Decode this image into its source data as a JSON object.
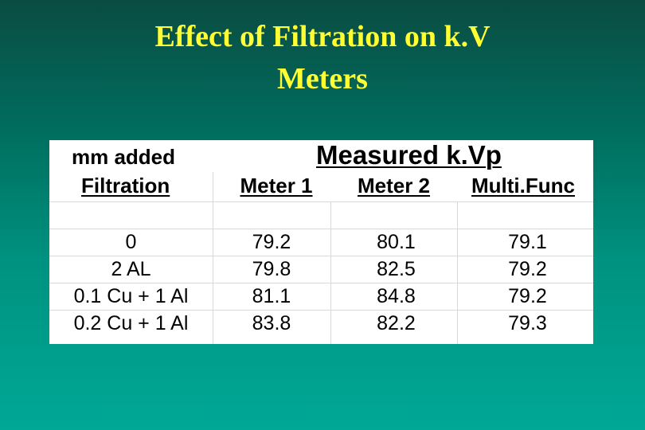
{
  "title": {
    "line1": "Effect of Filtration on k.V",
    "line2": "Meters"
  },
  "table": {
    "group_header": "Measured k.Vp",
    "filtration_header_line1": "mm added",
    "filtration_header_line2": "Filtration",
    "columns": [
      "Meter 1",
      "Meter 2",
      "Multi.Func"
    ],
    "rows": [
      {
        "filtration": "0",
        "values": [
          "79.2",
          "80.1",
          "79.1"
        ]
      },
      {
        "filtration": "2 AL",
        "values": [
          "79.8",
          "82.5",
          "79.2"
        ]
      },
      {
        "filtration": "0.1 Cu + 1 Al",
        "values": [
          "81.1",
          "84.8",
          "79.2"
        ]
      },
      {
        "filtration": "0.2 Cu + 1 Al",
        "values": [
          "83.8",
          "82.2",
          "79.3"
        ]
      }
    ]
  },
  "colors": {
    "title": "#ffff33",
    "background_top": "#0a4c42",
    "background_bottom": "#00a896",
    "panel": "#ffffff"
  }
}
